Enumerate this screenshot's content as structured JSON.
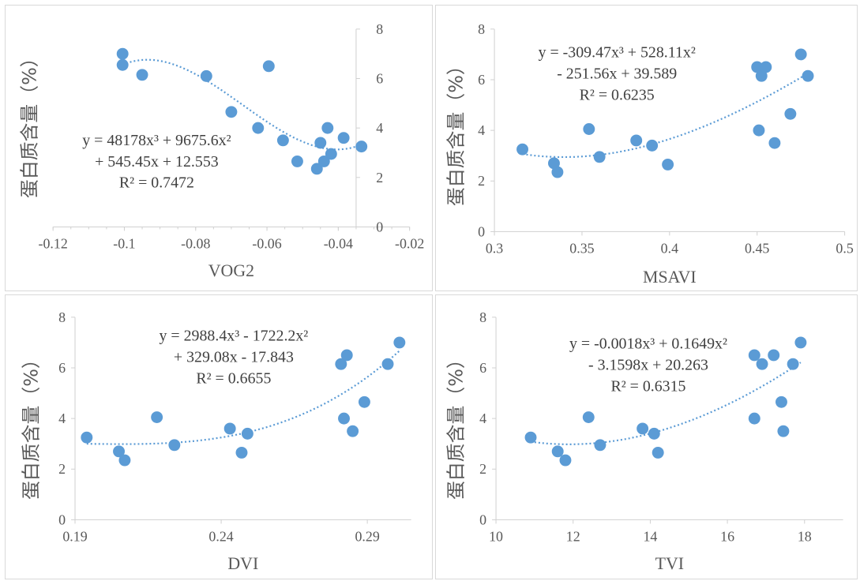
{
  "chart_data": [
    {
      "type": "scatter",
      "xlabel": "VOG2",
      "ylabel": "蛋白质含量（%）",
      "xlim": [
        -0.12,
        -0.02
      ],
      "ylim": [
        0,
        8
      ],
      "xticks": [
        "-0.12",
        "-0.1",
        "-0.08",
        "-0.06",
        "-0.04",
        "-0.02"
      ],
      "yticks": [
        "0",
        "2",
        "4",
        "6",
        "8"
      ],
      "y_axis_side": "right",
      "equation": [
        "y = 48178x³ + 9675.6x²",
        "+ 545.45x + 12.553",
        "R² = 0.7472"
      ],
      "trend_coeffs": [
        48178,
        9675.6,
        545.45,
        12.553
      ],
      "points": [
        {
          "x": -0.1005,
          "y": 7.0
        },
        {
          "x": -0.1005,
          "y": 6.55
        },
        {
          "x": -0.095,
          "y": 6.15
        },
        {
          "x": -0.077,
          "y": 6.1
        },
        {
          "x": -0.07,
          "y": 4.65
        },
        {
          "x": -0.0625,
          "y": 4.0
        },
        {
          "x": -0.0595,
          "y": 6.5
        },
        {
          "x": -0.0555,
          "y": 3.5
        },
        {
          "x": -0.0515,
          "y": 2.65
        },
        {
          "x": -0.046,
          "y": 2.35
        },
        {
          "x": -0.045,
          "y": 3.4
        },
        {
          "x": -0.044,
          "y": 2.65
        },
        {
          "x": -0.043,
          "y": 4.0
        },
        {
          "x": -0.042,
          "y": 2.95
        },
        {
          "x": -0.0385,
          "y": 3.6
        },
        {
          "x": -0.0335,
          "y": 3.25
        }
      ]
    },
    {
      "type": "scatter",
      "xlabel": "MSAVI",
      "ylabel": "蛋白质含量（%）",
      "xlim": [
        0.3,
        0.5
      ],
      "ylim": [
        0,
        8
      ],
      "xticks": [
        "0.3",
        "0.35",
        "0.4",
        "0.45",
        "0.5"
      ],
      "yticks": [
        "0",
        "2",
        "4",
        "6",
        "8"
      ],
      "y_axis_side": "left",
      "equation": [
        "y = -309.47x³ + 528.11x²",
        "- 251.56x + 39.589",
        "R² = 0.6235"
      ],
      "trend_coeffs": [
        -309.47,
        528.11,
        -251.56,
        39.589
      ],
      "points": [
        {
          "x": 0.316,
          "y": 3.25
        },
        {
          "x": 0.334,
          "y": 2.7
        },
        {
          "x": 0.336,
          "y": 2.35
        },
        {
          "x": 0.354,
          "y": 4.05
        },
        {
          "x": 0.36,
          "y": 2.95
        },
        {
          "x": 0.381,
          "y": 3.6
        },
        {
          "x": 0.39,
          "y": 3.4
        },
        {
          "x": 0.399,
          "y": 2.65
        },
        {
          "x": 0.45,
          "y": 6.5
        },
        {
          "x": 0.451,
          "y": 4.0
        },
        {
          "x": 0.4525,
          "y": 6.15
        },
        {
          "x": 0.455,
          "y": 6.5
        },
        {
          "x": 0.46,
          "y": 3.5
        },
        {
          "x": 0.469,
          "y": 4.65
        },
        {
          "x": 0.475,
          "y": 7.0
        },
        {
          "x": 0.479,
          "y": 6.15
        }
      ]
    },
    {
      "type": "scatter",
      "xlabel": "DVI",
      "ylabel": "蛋白质含量（%）",
      "xlim": [
        0.19,
        0.305
      ],
      "ylim": [
        0,
        8
      ],
      "xticks": [
        "0.19",
        "0.24",
        "0.29"
      ],
      "xtick_values": [
        0.19,
        0.24,
        0.29
      ],
      "yticks": [
        "0",
        "2",
        "4",
        "6",
        "8"
      ],
      "y_axis_side": "left",
      "equation": [
        "y = 2988.4x³ - 1722.2x²",
        "+ 329.08x - 17.843",
        "R² = 0.6655"
      ],
      "trend_coeffs": [
        2988.4,
        -1722.2,
        329.08,
        -17.843
      ],
      "points": [
        {
          "x": 0.194,
          "y": 3.25
        },
        {
          "x": 0.205,
          "y": 2.7
        },
        {
          "x": 0.207,
          "y": 2.35
        },
        {
          "x": 0.218,
          "y": 4.05
        },
        {
          "x": 0.224,
          "y": 2.95
        },
        {
          "x": 0.243,
          "y": 3.6
        },
        {
          "x": 0.247,
          "y": 2.65
        },
        {
          "x": 0.249,
          "y": 3.4
        },
        {
          "x": 0.281,
          "y": 6.15
        },
        {
          "x": 0.282,
          "y": 4.0
        },
        {
          "x": 0.283,
          "y": 6.5
        },
        {
          "x": 0.285,
          "y": 3.5
        },
        {
          "x": 0.289,
          "y": 4.65
        },
        {
          "x": 0.297,
          "y": 6.15
        },
        {
          "x": 0.301,
          "y": 7.0
        }
      ]
    },
    {
      "type": "scatter",
      "xlabel": "TVI",
      "ylabel": "蛋白质含量（%）",
      "xlim": [
        10,
        19
      ],
      "ylim": [
        0,
        8
      ],
      "xticks": [
        "10",
        "12",
        "14",
        "16",
        "18"
      ],
      "yticks": [
        "0",
        "2",
        "4",
        "6",
        "8"
      ],
      "y_axis_side": "left",
      "equation": [
        "y = -0.0018x³ + 0.1649x²",
        "- 3.1598x + 20.263",
        "R² = 0.6315"
      ],
      "trend_coeffs": [
        -0.0018,
        0.1649,
        -3.1598,
        20.263
      ],
      "points": [
        {
          "x": 10.9,
          "y": 3.25
        },
        {
          "x": 11.6,
          "y": 2.7
        },
        {
          "x": 11.8,
          "y": 2.35
        },
        {
          "x": 12.4,
          "y": 4.05
        },
        {
          "x": 12.7,
          "y": 2.95
        },
        {
          "x": 13.8,
          "y": 3.6
        },
        {
          "x": 14.1,
          "y": 3.4
        },
        {
          "x": 14.2,
          "y": 2.65
        },
        {
          "x": 16.7,
          "y": 6.5
        },
        {
          "x": 16.7,
          "y": 4.0
        },
        {
          "x": 16.9,
          "y": 6.15
        },
        {
          "x": 17.2,
          "y": 6.5
        },
        {
          "x": 17.4,
          "y": 4.65
        },
        {
          "x": 17.45,
          "y": 3.5
        },
        {
          "x": 17.7,
          "y": 6.15
        },
        {
          "x": 17.9,
          "y": 7.0
        }
      ]
    }
  ]
}
